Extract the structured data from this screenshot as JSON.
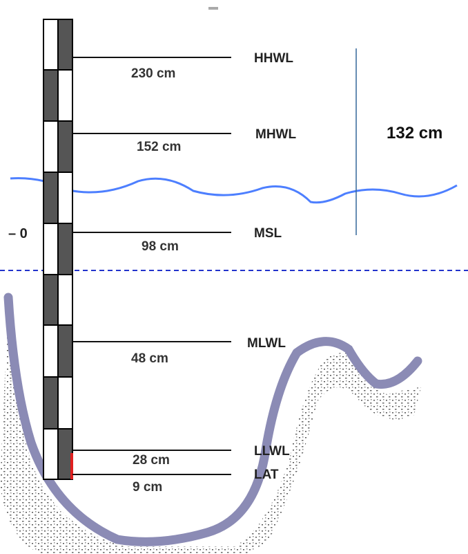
{
  "levels": [
    {
      "name": "HHWL",
      "height": "230 cm"
    },
    {
      "name": "MHWL",
      "height": "152 cm"
    },
    {
      "name": "MSL",
      "height": "98 cm"
    },
    {
      "name": "MLWL",
      "height": "48 cm"
    },
    {
      "name": "LLWL",
      "height": "28 cm"
    },
    {
      "name": "LAT",
      "height": "9 cm"
    }
  ],
  "range_label": "132 cm",
  "zero_label": "– 0"
}
